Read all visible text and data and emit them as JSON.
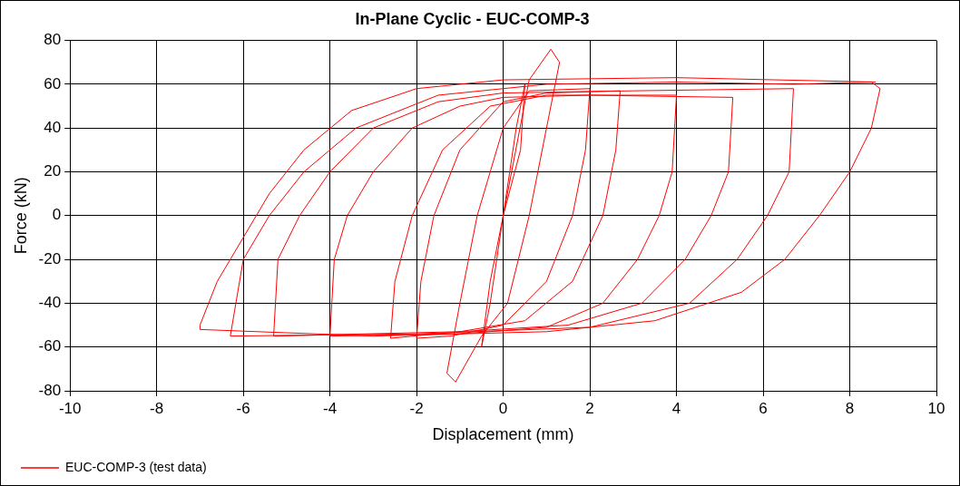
{
  "chart_data": {
    "type": "line",
    "title": "In-Plane Cyclic - EUC-COMP-3",
    "xlabel": "Displacement (mm)",
    "ylabel": "Force (kN)",
    "xlim": [
      -10,
      10
    ],
    "xticks": [
      -10,
      -8,
      -6,
      -4,
      -2,
      0,
      2,
      4,
      6,
      8,
      10
    ],
    "ylim": [
      -80,
      80
    ],
    "yticks": [
      -80,
      -60,
      -40,
      -20,
      0,
      20,
      40,
      60,
      80
    ],
    "grid": true,
    "legend": "bottom",
    "marker": "none",
    "line_style": "solid",
    "series": [
      {
        "name": "EUC-COMP-3 (test data)",
        "color": "#ff0000",
        "x": [
          0,
          0.3,
          0.5,
          0.4,
          0,
          -0.3,
          -0.5,
          -0.3,
          0,
          0.6,
          1.1,
          1.3,
          1.0,
          0.6,
          0.1,
          -0.5,
          -1.1,
          -1.3,
          -1.0,
          -0.6,
          0,
          0.6,
          2,
          1.9,
          1.6,
          1.0,
          0,
          -1.2,
          -2,
          -1.9,
          -1.6,
          -1.0,
          0,
          1,
          2.7,
          2.6,
          2.3,
          1.6,
          0.5,
          -1,
          -2.6,
          -2.5,
          -2.1,
          -1.4,
          -0.3,
          1,
          4,
          3.9,
          3.6,
          3.1,
          2.3,
          1,
          -1,
          -4,
          -3.9,
          -3.6,
          -3.0,
          -2.1,
          -1,
          0,
          2,
          5.3,
          5.2,
          4.8,
          4.2,
          3.2,
          1.5,
          -1,
          -5.3,
          -5.2,
          -4.7,
          -4.0,
          -3,
          -1.5,
          0,
          3,
          6.7,
          6.6,
          6.1,
          5.4,
          4.3,
          2,
          -2,
          -6.3,
          -6.0,
          -5.4,
          -4.6,
          -3.4,
          -1.5,
          1,
          4,
          6.7,
          8.5,
          8.7,
          8.5,
          8.0,
          7.3,
          6.5,
          5.5,
          3.5,
          1,
          -3,
          -7,
          -7,
          -6.6,
          -6.0,
          -5.4,
          -4.6,
          -3.5,
          -2,
          0,
          4,
          8.6
        ],
        "values": [
          0,
          40,
          60,
          30,
          0,
          -40,
          -60,
          -30,
          0,
          62,
          76,
          70,
          40,
          0,
          -40,
          -55,
          -76,
          -72,
          -40,
          0,
          40,
          57,
          58,
          30,
          0,
          -30,
          -50,
          -55,
          -56,
          -30,
          0,
          30,
          52,
          56,
          57,
          30,
          0,
          -30,
          -48,
          -53,
          -56,
          -30,
          0,
          30,
          50,
          55,
          55,
          20,
          0,
          -20,
          -40,
          -51,
          -54,
          -55,
          -20,
          0,
          20,
          40,
          50,
          54,
          55,
          54,
          20,
          0,
          -20,
          -40,
          -50,
          -53,
          -55,
          -20,
          0,
          20,
          40,
          52,
          56,
          57,
          58,
          20,
          0,
          -20,
          -40,
          -51,
          -54,
          -55,
          -20,
          0,
          20,
          40,
          55,
          60,
          61,
          60,
          61,
          58,
          40,
          20,
          0,
          -20,
          -35,
          -48,
          -53,
          -55,
          -52,
          -50,
          -30,
          -10,
          10,
          30,
          48,
          58,
          62,
          63,
          61
        ]
      }
    ]
  }
}
